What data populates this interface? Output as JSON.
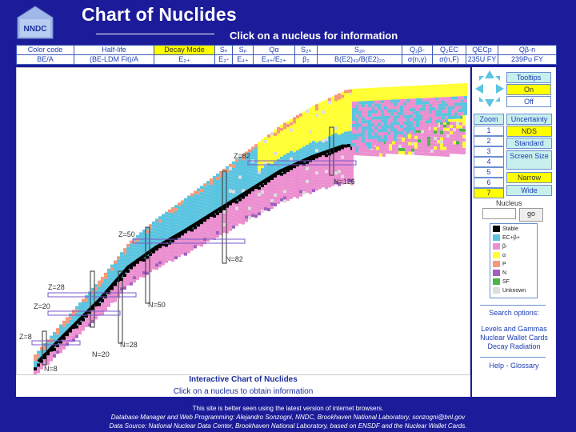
{
  "header": {
    "logo_text": "NNDC",
    "title": "Chart of Nuclides",
    "subtitle": "Click on a nucleus for information"
  },
  "options": {
    "row1": [
      "Color code",
      "Half-life",
      "Decay Mode",
      "Sₙ",
      "Sₚ",
      "Qα",
      "S₂ₙ",
      "S₂ₚ",
      "Q₂β-",
      "Q₂EC",
      "QECp",
      "Qβ-n"
    ],
    "row2": [
      "BE/A",
      "(BE-LDM Fit)/A",
      "E₂₊",
      "E₃-",
      "E₄₊",
      "E₄₊/E₂₊",
      "β₂",
      "B(E2)₄₂/B(E2)₂₀",
      "σ(n,γ)",
      "σ(n,F)",
      "235U FY",
      "239Pu FY"
    ],
    "selected": "Decay Mode"
  },
  "chart": {
    "caption": "Interactive Chart of Nuclides",
    "subcaption": "Click on a nucleus to obtain information",
    "magic_z": [
      "Z=8",
      "Z=20",
      "Z=28",
      "Z=50",
      "Z=82"
    ],
    "magic_n": [
      "N=8",
      "N=20",
      "N=28",
      "N=50",
      "N=82",
      "N=126"
    ]
  },
  "side": {
    "tooltips": {
      "label": "Tooltips",
      "on": "On",
      "off": "Off"
    },
    "zoom": {
      "label": "Zoom",
      "levels": [
        "1",
        "2",
        "3",
        "4",
        "5",
        "6",
        "7"
      ],
      "selected": "7"
    },
    "uncertainty": {
      "label": "Uncertainty",
      "options": [
        "NDS",
        "Standard"
      ],
      "selected": "NDS"
    },
    "screen_size": {
      "label": "Screen Size",
      "options": [
        "Narrow",
        "Wide"
      ],
      "selected": "Narrow"
    },
    "nucleus": {
      "label": "Nucleus",
      "placeholder": "",
      "go": "go"
    },
    "legend": [
      {
        "label": "Stable",
        "color": "#000000"
      },
      {
        "label": "EC+β+",
        "color": "#5bc4e0"
      },
      {
        "label": "β-",
        "color": "#ec8fd0"
      },
      {
        "label": "α",
        "color": "#ffff33"
      },
      {
        "label": "P",
        "color": "#f59a7a"
      },
      {
        "label": "N",
        "color": "#a060c0"
      },
      {
        "label": "SF",
        "color": "#49b549"
      },
      {
        "label": "Unknown",
        "color": "#dddddd"
      }
    ],
    "search_label": "Search options:",
    "links": [
      "Levels and Gammas",
      "Nuclear Wallet Cards",
      "Decay Radiation"
    ],
    "help": "Help - Glossary"
  },
  "footer": {
    "line1": "This site is better seen using the latest version of internet browsers.",
    "line2": "Database Manager and Web Programming: Alejandro Sonzogni, NNDC, Brookhaven National Laboratory, sonzogni@bnl.gov",
    "line3": "Data Source: National Nuclear Data Center, Brookhaven National Laboratory, based on ENSDF and the Nuclear Wallet Cards."
  }
}
